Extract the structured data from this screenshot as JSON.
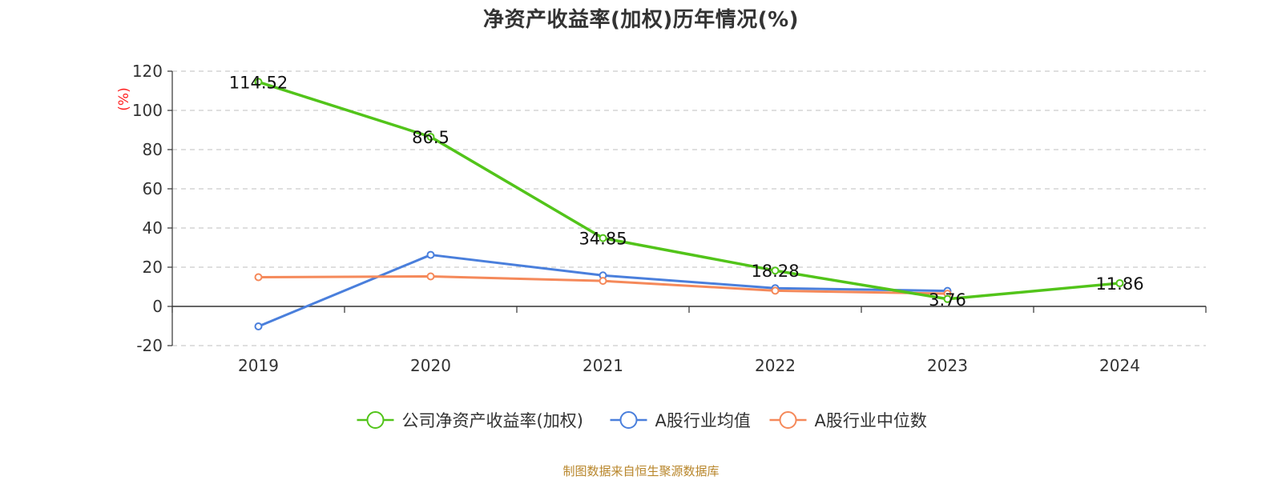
{
  "chart_data": {
    "type": "line",
    "title": "净资产收益率(加权)历年情况(%)",
    "ylabel": "(%)",
    "categories": [
      "2019",
      "2020",
      "2021",
      "2022",
      "2023",
      "2024"
    ],
    "ylim": [
      -20,
      120
    ],
    "yticks": [
      120,
      100,
      80,
      60,
      40,
      20,
      0,
      -20
    ],
    "grid": true,
    "legend_position": "bottom",
    "series": [
      {
        "name": "公司净资产收益率(加权)",
        "color": "#52c41a",
        "values": [
          114.52,
          86.5,
          34.85,
          18.28,
          3.76,
          11.86
        ],
        "labels": [
          "114.52",
          "86.5",
          "34.85",
          "18.28",
          "3.76",
          "11.86"
        ]
      },
      {
        "name": "A股行业均值",
        "color": "#4a7fdc",
        "values": [
          -10.2,
          26.3,
          15.8,
          9.3,
          7.9,
          null
        ]
      },
      {
        "name": "A股行业中位数",
        "color": "#f5895a",
        "values": [
          14.9,
          15.3,
          13.0,
          8.0,
          6.5,
          null
        ]
      }
    ]
  },
  "source": "制图数据来自恒生聚源数据库"
}
